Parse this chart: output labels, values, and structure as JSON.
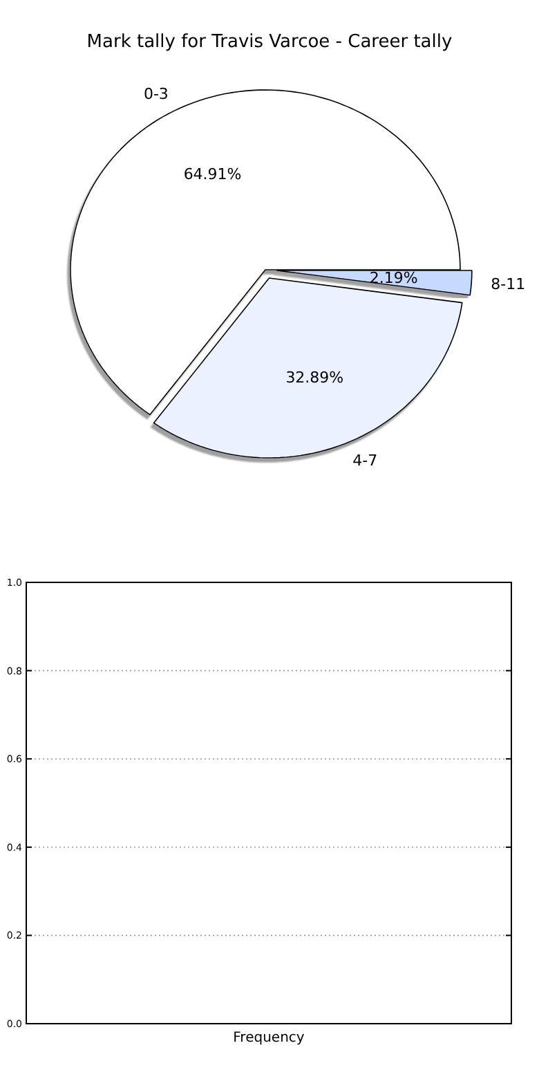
{
  "chart_data": [
    {
      "type": "pie",
      "title": "Mark tally for Travis Varcoe - Career tally",
      "categories": [
        "0-3",
        "4-7",
        "8-11"
      ],
      "values": [
        64.91,
        32.89,
        2.19
      ],
      "value_labels": [
        "64.91%",
        "32.89%",
        "2.19%"
      ],
      "colors": [
        "#ffffff",
        "#ebf1ff",
        "#c6d9ff"
      ]
    },
    {
      "type": "bar",
      "categories": [
        "Frequency"
      ],
      "values": [
        0
      ],
      "ylim": [
        0,
        1
      ],
      "yticks": [
        {
          "value": 0,
          "label": "0.0"
        },
        {
          "value": 0.2,
          "label": "0.2"
        },
        {
          "value": 0.4,
          "label": "0.4"
        },
        {
          "value": 0.6,
          "label": "0.6"
        },
        {
          "value": 0.8,
          "label": "0.8"
        },
        {
          "value": 1,
          "label": "1.0"
        }
      ],
      "grid": "y"
    }
  ]
}
